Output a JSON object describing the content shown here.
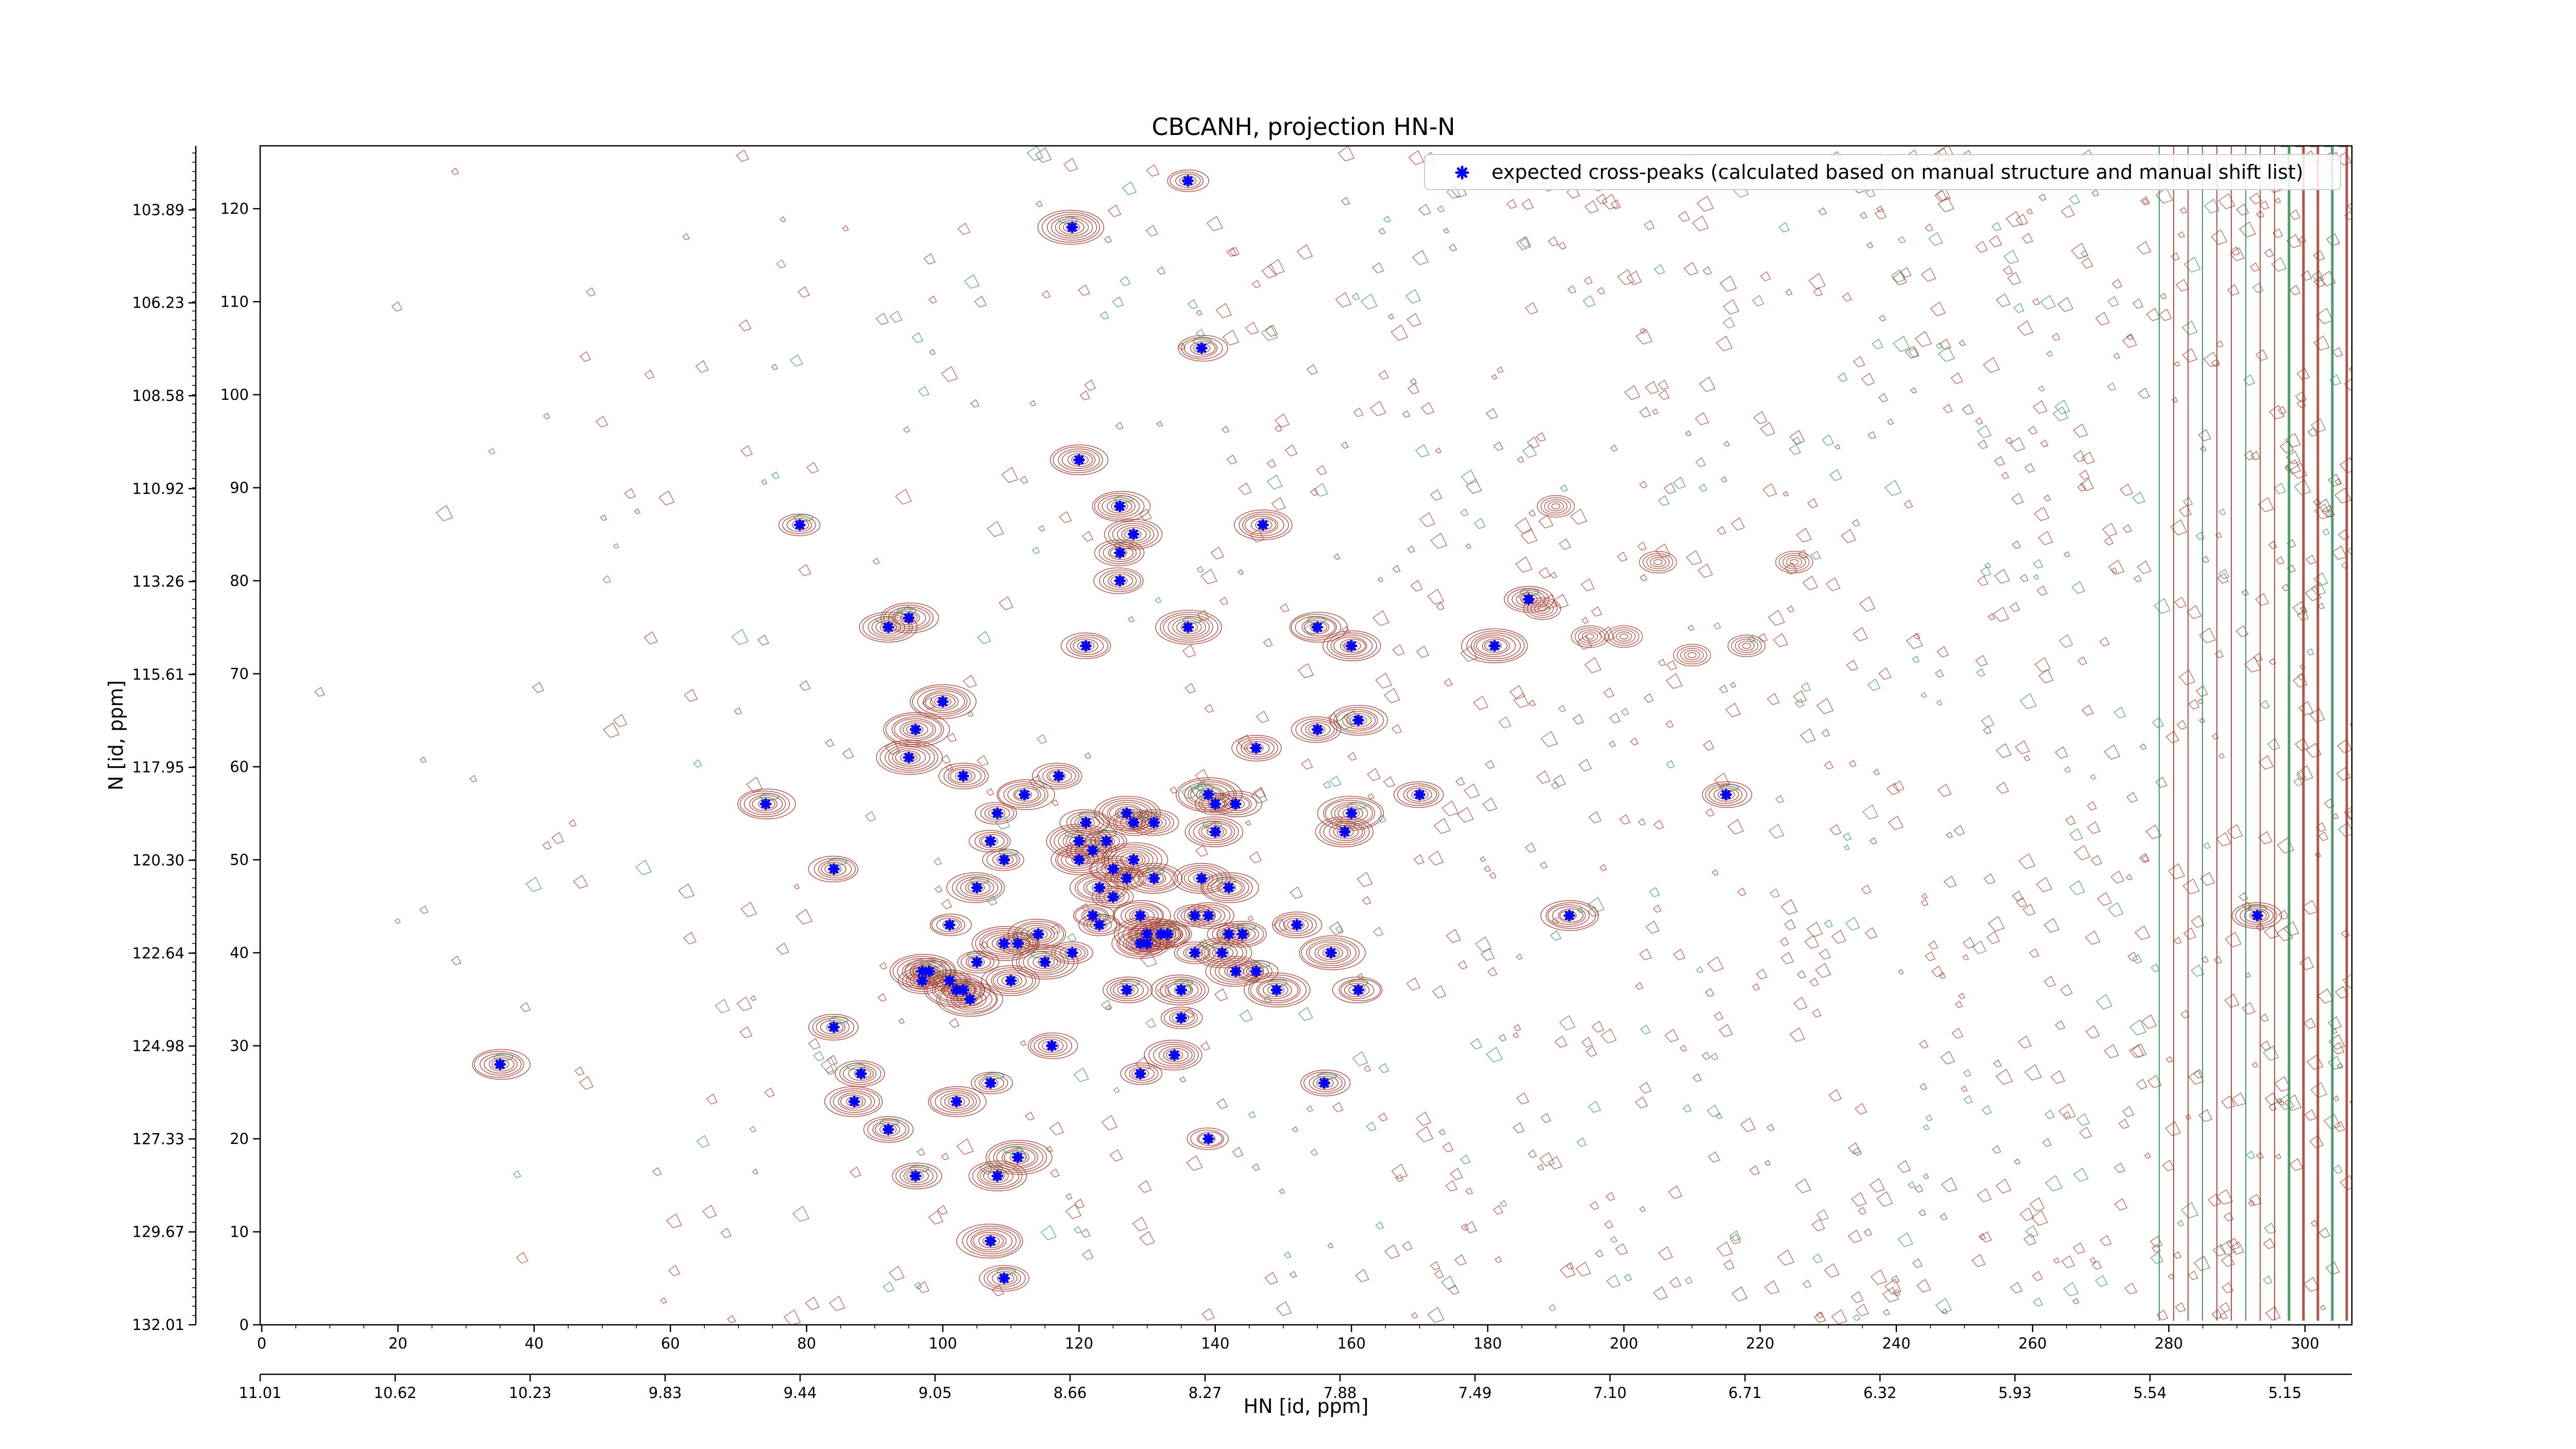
{
  "chart_data": {
    "type": "scatter",
    "title": "CBCANH, projection HN-N",
    "xlabel": "HN [id, ppm]",
    "ylabel": "N [id, ppm]",
    "x_index_ticks": [
      "0",
      "20",
      "40",
      "60",
      "80",
      "100",
      "120",
      "140",
      "160",
      "180",
      "200",
      "220",
      "240",
      "260",
      "280",
      "300"
    ],
    "x_ppm_ticks": [
      "11.01",
      "10.62",
      "10.23",
      "9.83",
      "9.44",
      "9.05",
      "8.66",
      "8.27",
      "7.88",
      "7.49",
      "7.10",
      "6.71",
      "6.32",
      "5.93",
      "5.54",
      "5.15"
    ],
    "y_index_ticks": [
      "0",
      "10",
      "20",
      "30",
      "40",
      "50",
      "60",
      "70",
      "80",
      "90",
      "100",
      "110",
      "120"
    ],
    "y_ppm_ticks": [
      "132.01",
      "129.67",
      "127.33",
      "124.98",
      "122.64",
      "120.30",
      "117.95",
      "115.61",
      "113.26",
      "110.92",
      "108.58",
      "106.23",
      "103.89"
    ],
    "xlim_index": [
      0,
      307
    ],
    "ylim_index": [
      0,
      126
    ],
    "grid": false,
    "legend_position": "top-right",
    "legend_label": "expected cross-peaks (calculated based on manual structure and manual shift list)",
    "marker_color": "#0000ff",
    "contour_colors": {
      "positive": "#a0392c",
      "negative": "#2e8b57"
    },
    "series": [
      {
        "name": "expected cross-peaks (calculated based on manual structure and manual shift list)",
        "points": [
          [
            35,
            28
          ],
          [
            74,
            56
          ],
          [
            79,
            86
          ],
          [
            84,
            32
          ],
          [
            84,
            49
          ],
          [
            87,
            24
          ],
          [
            88,
            27
          ],
          [
            92,
            21
          ],
          [
            92,
            75
          ],
          [
            95,
            76
          ],
          [
            95,
            61
          ],
          [
            96,
            64
          ],
          [
            96,
            16
          ],
          [
            97,
            37
          ],
          [
            97,
            38
          ],
          [
            98,
            38
          ],
          [
            100,
            67
          ],
          [
            101,
            37
          ],
          [
            101,
            43
          ],
          [
            102,
            36
          ],
          [
            102,
            24
          ],
          [
            103,
            36
          ],
          [
            103,
            59
          ],
          [
            104,
            35
          ],
          [
            105,
            39
          ],
          [
            105,
            47
          ],
          [
            107,
            26
          ],
          [
            107,
            52
          ],
          [
            107,
            9
          ],
          [
            108,
            55
          ],
          [
            108,
            16
          ],
          [
            109,
            41
          ],
          [
            109,
            50
          ],
          [
            109,
            5
          ],
          [
            110,
            37
          ],
          [
            111,
            41
          ],
          [
            111,
            18
          ],
          [
            112,
            57
          ],
          [
            114,
            42
          ],
          [
            115,
            39
          ],
          [
            116,
            30
          ],
          [
            117,
            59
          ],
          [
            119,
            40
          ],
          [
            119,
            118
          ],
          [
            120,
            50
          ],
          [
            120,
            52
          ],
          [
            120,
            93
          ],
          [
            121,
            73
          ],
          [
            121,
            54
          ],
          [
            122,
            51
          ],
          [
            122,
            44
          ],
          [
            123,
            43
          ],
          [
            123,
            47
          ],
          [
            124,
            52
          ],
          [
            125,
            46
          ],
          [
            125,
            49
          ],
          [
            126,
            88
          ],
          [
            126,
            83
          ],
          [
            126,
            80
          ],
          [
            127,
            36
          ],
          [
            127,
            48
          ],
          [
            127,
            55
          ],
          [
            128,
            50
          ],
          [
            128,
            85
          ],
          [
            128,
            54
          ],
          [
            129,
            27
          ],
          [
            129,
            44
          ],
          [
            129,
            41
          ],
          [
            130,
            41
          ],
          [
            130,
            42
          ],
          [
            131,
            48
          ],
          [
            131,
            54
          ],
          [
            132,
            42
          ],
          [
            133,
            42
          ],
          [
            134,
            29
          ],
          [
            135,
            33
          ],
          [
            135,
            36
          ],
          [
            136,
            75
          ],
          [
            136,
            123
          ],
          [
            137,
            40
          ],
          [
            137,
            44
          ],
          [
            138,
            48
          ],
          [
            138,
            105
          ],
          [
            139,
            20
          ],
          [
            139,
            57
          ],
          [
            139,
            44
          ],
          [
            140,
            56
          ],
          [
            140,
            53
          ],
          [
            141,
            40
          ],
          [
            142,
            47
          ],
          [
            142,
            42
          ],
          [
            143,
            38
          ],
          [
            143,
            56
          ],
          [
            144,
            42
          ],
          [
            146,
            38
          ],
          [
            146,
            62
          ],
          [
            147,
            86
          ],
          [
            149,
            36
          ],
          [
            152,
            43
          ],
          [
            155,
            64
          ],
          [
            155,
            75
          ],
          [
            156,
            26
          ],
          [
            157,
            40
          ],
          [
            159,
            53
          ],
          [
            160,
            55
          ],
          [
            160,
            73
          ],
          [
            161,
            36
          ],
          [
            161,
            65
          ],
          [
            170,
            57
          ],
          [
            181,
            73
          ],
          [
            186,
            78
          ],
          [
            192,
            44
          ],
          [
            215,
            57
          ],
          [
            293,
            44
          ]
        ]
      }
    ]
  }
}
